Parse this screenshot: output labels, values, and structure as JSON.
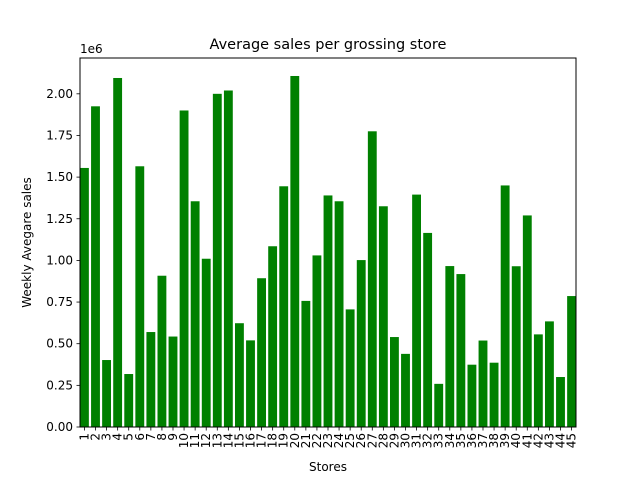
{
  "chart_data": {
    "type": "bar",
    "title": "Average sales per grossing store",
    "xlabel": "Stores",
    "ylabel": "Weekly Avegare sales",
    "y_multiplier_label": "1e6",
    "ylim": [
      0,
      2215000
    ],
    "y_ticks": [
      0,
      250000,
      500000,
      750000,
      1000000,
      1250000,
      1500000,
      1750000,
      2000000
    ],
    "y_tick_labels": [
      "0.00",
      "0.25",
      "0.50",
      "0.75",
      "1.00",
      "1.25",
      "1.50",
      "1.75",
      "2.00"
    ],
    "grid": false,
    "bar_color": "#008000",
    "categories": [
      "1",
      "2",
      "3",
      "4",
      "5",
      "6",
      "7",
      "8",
      "9",
      "10",
      "11",
      "12",
      "13",
      "14",
      "15",
      "16",
      "17",
      "18",
      "19",
      "20",
      "21",
      "22",
      "23",
      "24",
      "25",
      "26",
      "27",
      "28",
      "29",
      "30",
      "31",
      "32",
      "33",
      "34",
      "35",
      "36",
      "37",
      "38",
      "39",
      "40",
      "41",
      "42",
      "43",
      "44",
      "45"
    ],
    "values": [
      1555000,
      1925000,
      402000,
      2095000,
      318000,
      1565000,
      570000,
      908000,
      543000,
      1900000,
      1355000,
      1010000,
      2000000,
      2020000,
      623000,
      520000,
      893000,
      1085000,
      1445000,
      2107000,
      757000,
      1030000,
      1390000,
      1355000,
      706000,
      1002000,
      1775000,
      1325000,
      540000,
      439000,
      1395000,
      1165000,
      259000,
      966000,
      918000,
      374000,
      519000,
      386000,
      1450000,
      965000,
      1270000,
      556000,
      634000,
      300000,
      786000
    ]
  }
}
